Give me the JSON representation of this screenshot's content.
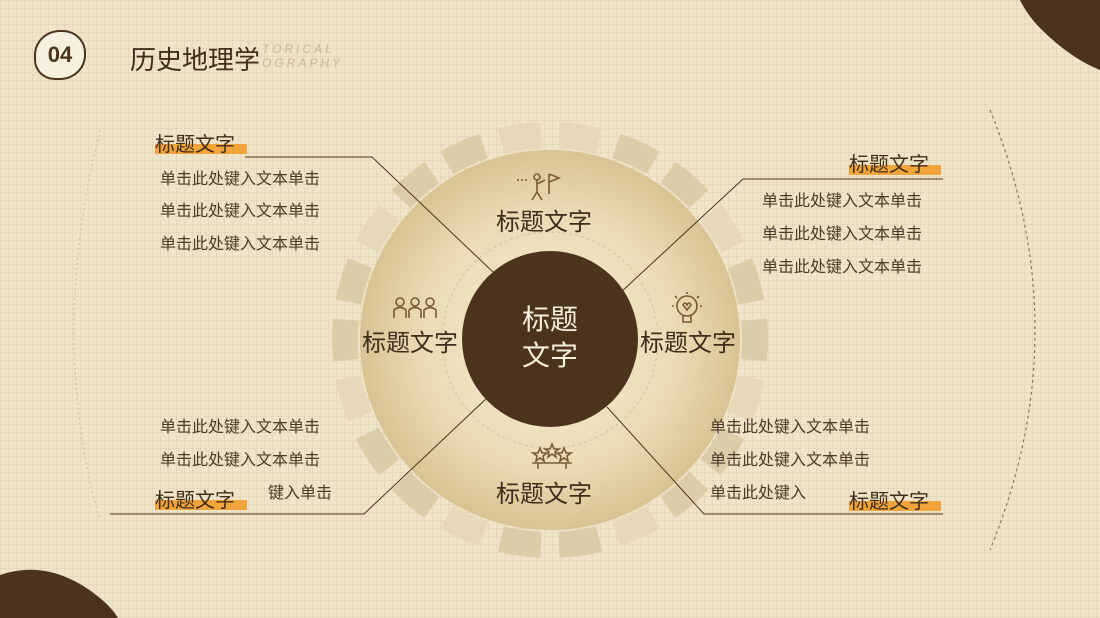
{
  "header": {
    "slide_number": "04",
    "title": "历史地理学",
    "subtitle_en": "TORICAL\nOGRAPHY"
  },
  "center": {
    "line1": "标题",
    "line2": "文字"
  },
  "quadrants": {
    "top": {
      "label": "标题文字",
      "icon": "person-climbing-flag-icon"
    },
    "left": {
      "label": "标题文字",
      "icon": "people-group-icon"
    },
    "right": {
      "label": "标题文字",
      "icon": "lightbulb-heart-icon"
    },
    "bottom": {
      "label": "标题文字",
      "icon": "star-trophy-icon"
    }
  },
  "callouts": {
    "top_left": {
      "heading": "标题文字",
      "lines": [
        "单击此处键入文本单击",
        "单击此处键入文本单击",
        "单击此处键入文本单击"
      ]
    },
    "top_right": {
      "heading": "标题文字",
      "lines": [
        "单击此处键入文本单击",
        "单击此处键入文本单击",
        "单击此处键入文本单击"
      ]
    },
    "bottom_left": {
      "heading": "标题文字",
      "lines": [
        "单击此处键入文本单击",
        "单击此处键入文本单击",
        "键入单击"
      ]
    },
    "bottom_right": {
      "heading": "标题文字",
      "lines": [
        "单击此处键入文本单击",
        "单击此处键入文本单击",
        "单击此处键入"
      ]
    }
  },
  "colors": {
    "background": "#efe4c8",
    "dark_brown": "#4b331c",
    "accent_orange": "#f1a43a",
    "ring_light": "#e0d1ad"
  }
}
